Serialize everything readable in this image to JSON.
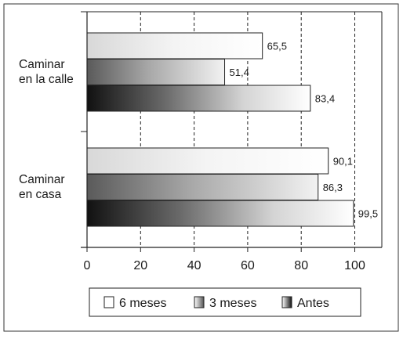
{
  "chart_data": {
    "type": "bar",
    "orientation": "horizontal",
    "categories": [
      "Caminar\nen la calle",
      "Caminar\nen casa"
    ],
    "series": [
      {
        "name": "6 meses",
        "values": [
          65.5,
          90.1
        ],
        "labels": [
          "65,5",
          "90,1"
        ],
        "fill": "light-gradient"
      },
      {
        "name": "3 meses",
        "values": [
          51.4,
          86.3
        ],
        "labels": [
          "51,4",
          "86,3"
        ],
        "fill": "mid-gradient"
      },
      {
        "name": "Antes",
        "values": [
          83.4,
          99.5
        ],
        "labels": [
          "83,4",
          "99,5"
        ],
        "fill": "dark-gradient"
      }
    ],
    "xlim": [
      0,
      110
    ],
    "xticks": [
      0,
      20,
      40,
      60,
      80,
      100
    ],
    "xtick_labels": [
      "0",
      "20",
      "40",
      "60",
      "80",
      "100"
    ],
    "grid": "vertical dashed",
    "legend_placement": "bottom-center",
    "title": "",
    "xlabel": "",
    "ylabel": ""
  }
}
